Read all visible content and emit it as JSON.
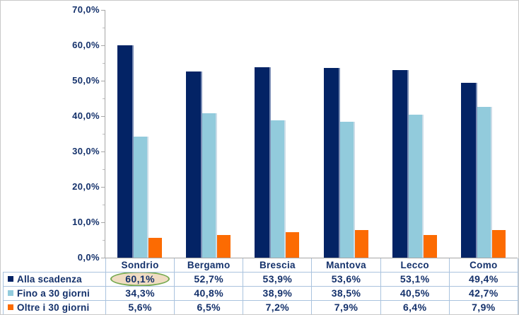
{
  "chart_data": {
    "type": "bar",
    "title": "",
    "categories": [
      "Sondrio",
      "Bergamo",
      "Brescia",
      "Mantova",
      "Lecco",
      "Como"
    ],
    "series": [
      {
        "name": "Alla scadenza",
        "color": "#032365",
        "values": [
          60.1,
          52.7,
          53.9,
          53.6,
          53.1,
          49.4
        ],
        "labels": [
          "60,1%",
          "52,7%",
          "53,9%",
          "53,6%",
          "53,1%",
          "49,4%"
        ]
      },
      {
        "name": "Fino a 30 giorni",
        "color": "#92cbdc",
        "values": [
          34.3,
          40.8,
          38.9,
          38.5,
          40.5,
          42.7
        ],
        "labels": [
          "34,3%",
          "40,8%",
          "38,9%",
          "38,5%",
          "40,5%",
          "42,7%"
        ]
      },
      {
        "name": "Oltre i 30 giorni",
        "color": "#fc6b02",
        "values": [
          5.6,
          6.5,
          7.2,
          7.9,
          6.4,
          7.9
        ],
        "labels": [
          "5,6%",
          "6,5%",
          "7,2%",
          "7,9%",
          "6,4%",
          "7,9%"
        ]
      }
    ],
    "y_axis": {
      "tick_values": [
        0,
        10,
        20,
        30,
        40,
        50,
        60,
        70
      ],
      "tick_labels": [
        "0,0%",
        "10,0%",
        "20,0%",
        "30,0%",
        "40,0%",
        "50,0%",
        "60,0%",
        "70,0%"
      ],
      "min": 0,
      "max": 70,
      "minor_tick_step": 5
    },
    "grid": false,
    "legend_position": "left column of data table",
    "annotations": [
      {
        "type": "ellipse-highlight",
        "target_series": "Alla scadenza",
        "target_category": "Sondrio",
        "value_label": "60,1%",
        "fill_color": "#f0dcc2",
        "border_color": "#77aa50"
      }
    ]
  },
  "colors": {
    "axis": "#a6a6a6",
    "table_border": "#aac3de",
    "text": "#14316b",
    "navy_bar_shadow": "#7b8db5",
    "frame_border": "#c9c9c9",
    "background": "#ffffff"
  }
}
